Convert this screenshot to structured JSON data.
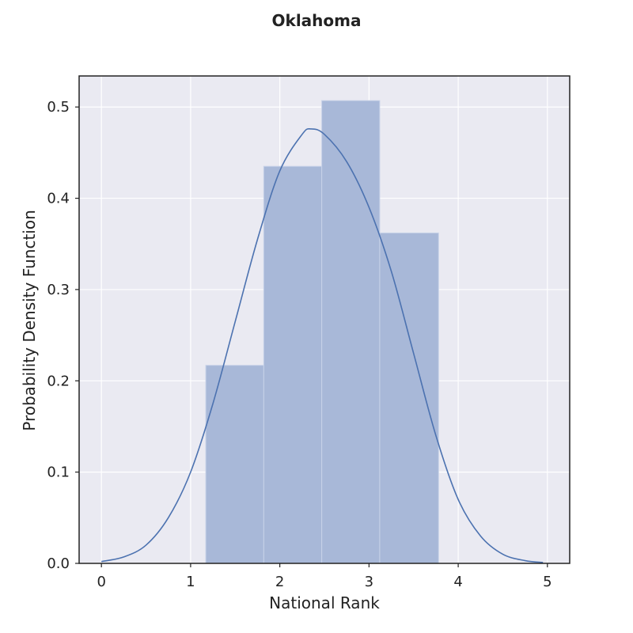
{
  "chart_data": {
    "type": "bar",
    "title": "Oklahoma",
    "xlabel": "National Rank",
    "ylabel": "Probability Density Function",
    "xlim": [
      -0.25,
      5.25
    ],
    "ylim": [
      0,
      0.534
    ],
    "xticks": [
      0,
      1,
      2,
      3,
      4,
      5
    ],
    "yticks": [
      0.0,
      0.1,
      0.2,
      0.3,
      0.4,
      0.5
    ],
    "xtick_labels": [
      "0",
      "1",
      "2",
      "3",
      "4",
      "5"
    ],
    "ytick_labels": [
      "0.0",
      "0.1",
      "0.2",
      "0.3",
      "0.4",
      "0.5"
    ],
    "grid": true,
    "legend": "none",
    "colors": {
      "plot_background": "#eaeaf2",
      "grid": "#ffffff",
      "bar_fill": "#a8b8d8",
      "bar_edge": "#c7d2e8",
      "kde_line": "#4c72b0",
      "frame": "#222222"
    },
    "histogram": [
      {
        "x0": 1.17,
        "x1": 1.82,
        "value": 0.217
      },
      {
        "x0": 1.82,
        "x1": 2.47,
        "value": 0.435
      },
      {
        "x0": 2.47,
        "x1": 3.12,
        "value": 0.507
      },
      {
        "x0": 3.12,
        "x1": 3.78,
        "value": 0.362
      }
    ],
    "kde": {
      "x": [
        0.0,
        0.25,
        0.5,
        0.75,
        1.0,
        1.25,
        1.5,
        1.75,
        2.0,
        2.25,
        2.35,
        2.5,
        2.75,
        3.0,
        3.25,
        3.5,
        3.75,
        4.0,
        4.25,
        4.5,
        4.75,
        4.95
      ],
      "y": [
        0.002,
        0.007,
        0.02,
        0.05,
        0.1,
        0.175,
        0.265,
        0.355,
        0.43,
        0.47,
        0.476,
        0.47,
        0.44,
        0.39,
        0.32,
        0.23,
        0.14,
        0.07,
        0.03,
        0.01,
        0.003,
        0.001
      ]
    }
  }
}
